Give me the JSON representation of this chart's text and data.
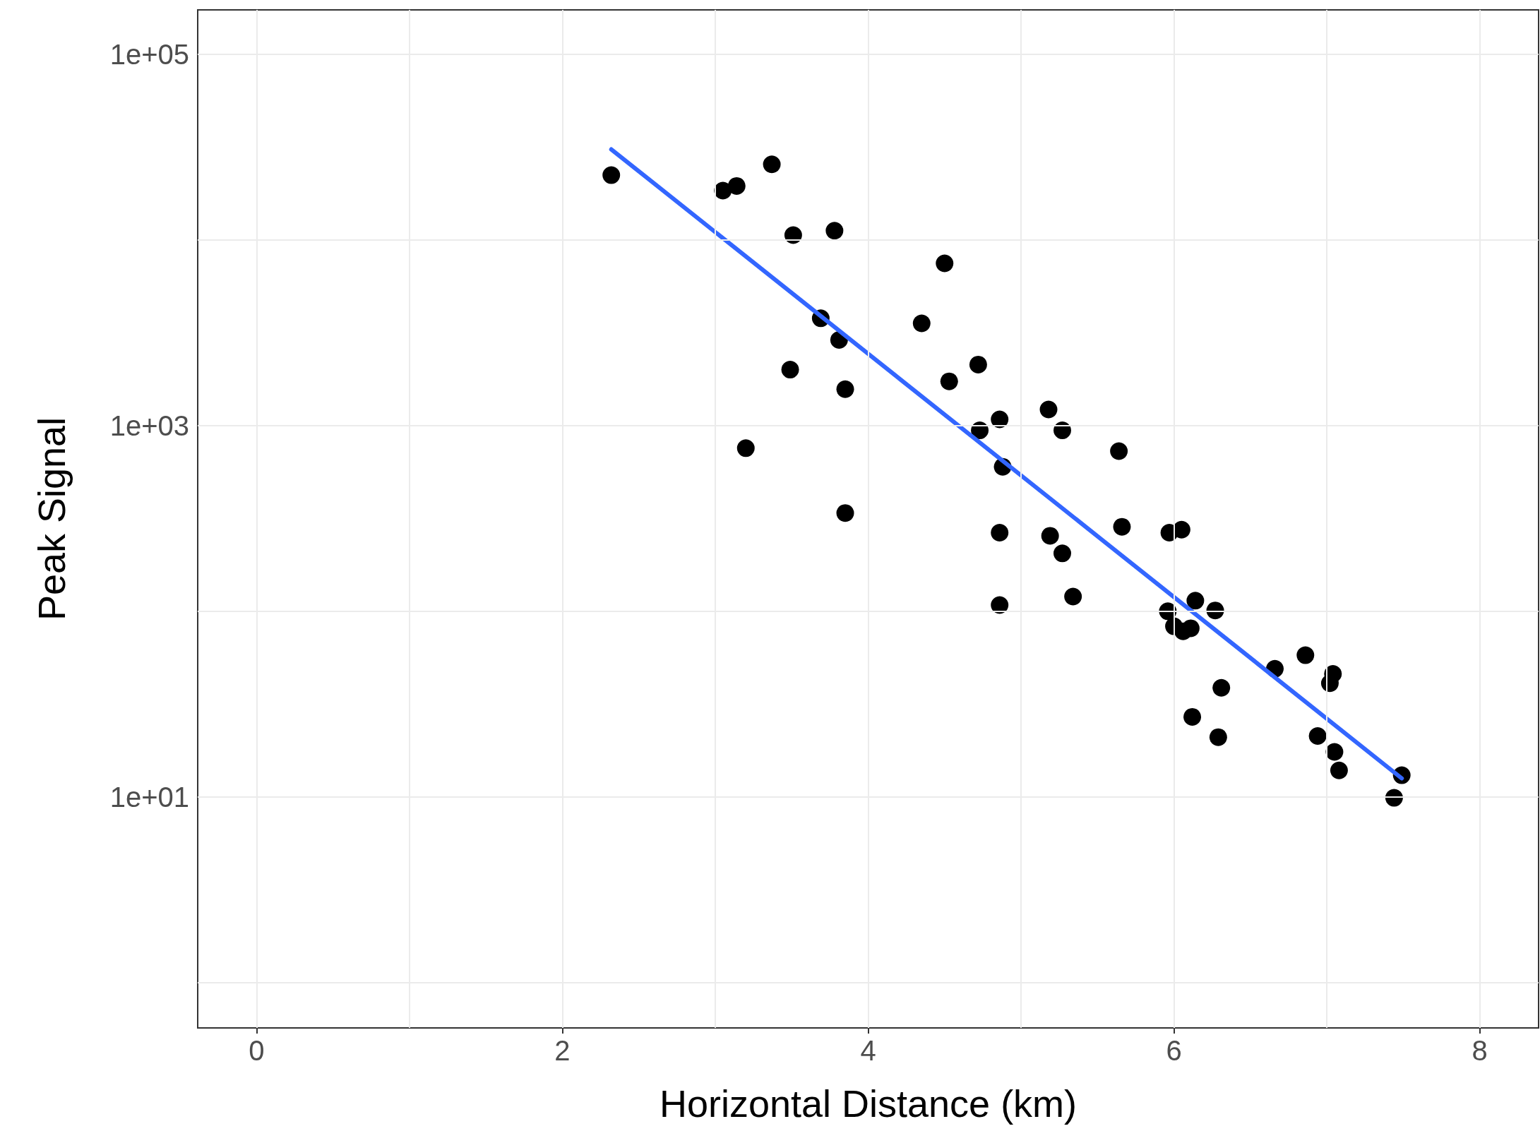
{
  "chart_data": {
    "type": "scatter",
    "xlabel": "Horizontal Distance (km)",
    "ylabel": "Peak Signal",
    "log": "y",
    "grid": true,
    "xlim": [
      -0.385,
      8.385
    ],
    "ylim": [
      0.571,
      173000
    ],
    "xticks": [
      0,
      {
        "value": 1,
        "label": null
      },
      2,
      {
        "value": 3,
        "label": null
      },
      4,
      {
        "value": 5,
        "label": null
      },
      6,
      {
        "value": 7,
        "label": null
      },
      8
    ],
    "yticks": [
      {
        "value": 1,
        "label": null
      },
      {
        "value": 10,
        "label": "1e+01"
      },
      {
        "value": 100,
        "label": null
      },
      {
        "value": 1000,
        "label": "1e+03"
      },
      {
        "value": 10000,
        "label": null
      },
      {
        "value": 100000,
        "label": "1e+05"
      }
    ],
    "series": [
      {
        "color": "#000000",
        "marker": "circle",
        "x": [
          2.32,
          3.05,
          3.14,
          3.37,
          3.51,
          3.78,
          4.5,
          3.69,
          3.81,
          4.35,
          3.49,
          3.85,
          4.72,
          4.53,
          3.2,
          3.85,
          4.86,
          4.73,
          5.18,
          5.27,
          4.88,
          5.64,
          4.86,
          5.19,
          5.27,
          5.66,
          5.97,
          6.05,
          5.34,
          4.86,
          5.96,
          6.14,
          6.27,
          6.0,
          6.06,
          6.11,
          6.66,
          6.86,
          7.04,
          7.02,
          6.31,
          6.12,
          6.29,
          6.94,
          7.05,
          7.08,
          7.49,
          7.44
        ],
        "values": [
          22300,
          18400,
          19500,
          25500,
          10600,
          11200,
          7470,
          3780,
          2890,
          3550,
          2000,
          1570,
          2130,
          1730,
          755,
          338,
          1080,
          942,
          1220,
          942,
          600,
          728,
          265,
          255,
          205,
          285,
          265,
          275,
          120,
          108,
          100,
          114,
          101,
          83,
          78,
          81,
          49,
          58,
          46,
          41,
          38.7,
          27,
          21,
          21.3,
          17.5,
          13.9,
          13.1,
          9.9
        ]
      },
      {
        "type": "line",
        "color": "#3366ff",
        "marker": "none",
        "line_style": "solid",
        "x": [
          2.32,
          7.49
        ],
        "values": [
          30700,
          12.6
        ]
      }
    ]
  }
}
